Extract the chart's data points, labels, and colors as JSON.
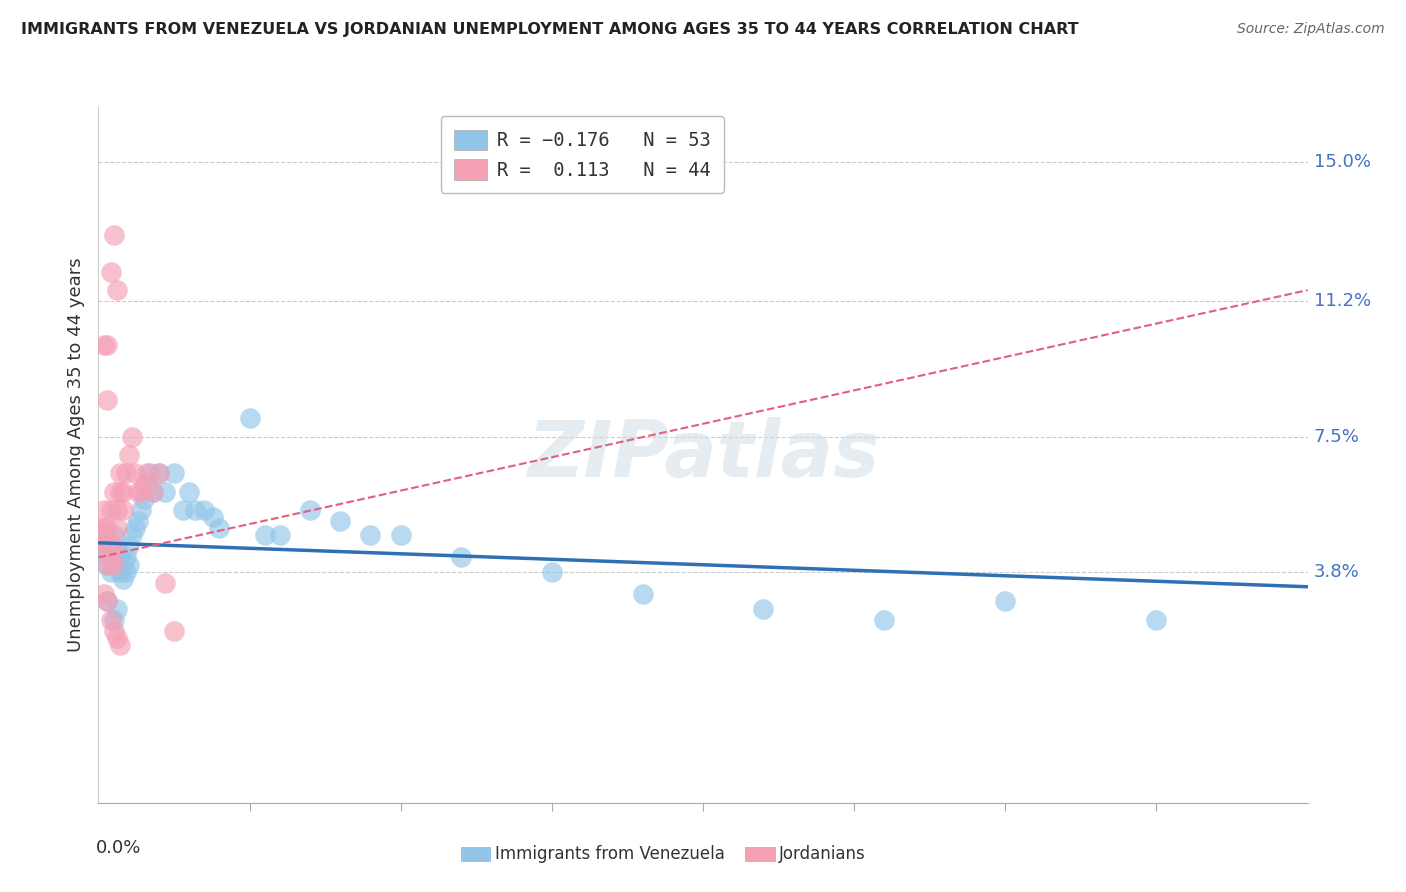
{
  "title": "IMMIGRANTS FROM VENEZUELA VS JORDANIAN UNEMPLOYMENT AMONG AGES 35 TO 44 YEARS CORRELATION CHART",
  "source": "Source: ZipAtlas.com",
  "ylabel": "Unemployment Among Ages 35 to 44 years",
  "ytick_vals": [
    0.038,
    0.075,
    0.112,
    0.15
  ],
  "ytick_labels": [
    "3.8%",
    "7.5%",
    "11.2%",
    "15.0%"
  ],
  "xlim": [
    0.0,
    0.4
  ],
  "ylim": [
    -0.025,
    0.165
  ],
  "watermark": "ZIPatlas",
  "color_blue": "#92C5E8",
  "color_pink": "#F4A0B5",
  "trendline_blue": "#2E6FB5",
  "trendline_pink": "#E06080",
  "blue_scatter_x": [
    0.001,
    0.002,
    0.002,
    0.003,
    0.003,
    0.004,
    0.004,
    0.005,
    0.005,
    0.006,
    0.006,
    0.007,
    0.007,
    0.008,
    0.008,
    0.009,
    0.009,
    0.01,
    0.01,
    0.011,
    0.012,
    0.013,
    0.014,
    0.015,
    0.016,
    0.017,
    0.018,
    0.02,
    0.022,
    0.025,
    0.028,
    0.03,
    0.032,
    0.035,
    0.038,
    0.04,
    0.05,
    0.055,
    0.06,
    0.07,
    0.08,
    0.09,
    0.1,
    0.12,
    0.15,
    0.18,
    0.22,
    0.26,
    0.3,
    0.35,
    0.005,
    0.003,
    0.006
  ],
  "blue_scatter_y": [
    0.045,
    0.043,
    0.048,
    0.04,
    0.046,
    0.038,
    0.044,
    0.042,
    0.048,
    0.04,
    0.044,
    0.038,
    0.042,
    0.036,
    0.04,
    0.038,
    0.042,
    0.045,
    0.04,
    0.048,
    0.05,
    0.052,
    0.055,
    0.058,
    0.062,
    0.065,
    0.06,
    0.065,
    0.06,
    0.065,
    0.055,
    0.06,
    0.055,
    0.055,
    0.053,
    0.05,
    0.08,
    0.048,
    0.048,
    0.055,
    0.052,
    0.048,
    0.048,
    0.042,
    0.038,
    0.032,
    0.028,
    0.025,
    0.03,
    0.025,
    0.025,
    0.03,
    0.028
  ],
  "pink_scatter_x": [
    0.001,
    0.001,
    0.002,
    0.002,
    0.002,
    0.003,
    0.003,
    0.003,
    0.004,
    0.004,
    0.004,
    0.005,
    0.005,
    0.005,
    0.006,
    0.006,
    0.007,
    0.007,
    0.008,
    0.008,
    0.009,
    0.01,
    0.011,
    0.012,
    0.013,
    0.014,
    0.015,
    0.016,
    0.018,
    0.02,
    0.003,
    0.003,
    0.004,
    0.005,
    0.006,
    0.002,
    0.004,
    0.005,
    0.006,
    0.007,
    0.002,
    0.003,
    0.022,
    0.025
  ],
  "pink_scatter_y": [
    0.048,
    0.05,
    0.045,
    0.05,
    0.055,
    0.04,
    0.046,
    0.05,
    0.042,
    0.046,
    0.055,
    0.04,
    0.045,
    0.06,
    0.05,
    0.055,
    0.06,
    0.065,
    0.055,
    0.06,
    0.065,
    0.07,
    0.075,
    0.065,
    0.06,
    0.06,
    0.062,
    0.065,
    0.06,
    0.065,
    0.085,
    0.1,
    0.12,
    0.13,
    0.115,
    0.1,
    0.025,
    0.022,
    0.02,
    0.018,
    0.032,
    0.03,
    0.035,
    0.022
  ]
}
